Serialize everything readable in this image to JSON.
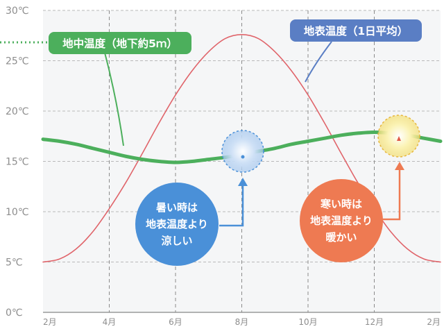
{
  "chart_data": {
    "type": "line",
    "ylim": [
      0,
      30
    ],
    "y_ticks": [
      "0℃",
      "5℃",
      "10℃",
      "15℃",
      "20℃",
      "25℃",
      "30℃"
    ],
    "x_ticks": [
      {
        "label": "2月",
        "month": 2
      },
      {
        "label": "4月",
        "month": 4
      },
      {
        "label": "6月",
        "month": 6
      },
      {
        "label": "8月",
        "month": 8
      },
      {
        "label": "10月",
        "month": 10
      },
      {
        "label": "12月",
        "month": 12
      },
      {
        "label": "2月",
        "month": 14
      }
    ],
    "xlim": [
      2,
      14
    ],
    "grid": true,
    "series": [
      {
        "name": "地表温度（1日平均）",
        "color": "#e0646a",
        "x": [
          2,
          2.5,
          3,
          3.5,
          4,
          4.5,
          5,
          5.5,
          6,
          6.5,
          7,
          7.5,
          8,
          8.5,
          9,
          9.5,
          10,
          10.5,
          11,
          11.5,
          12,
          12.5,
          13,
          13.5,
          14
        ],
        "y": [
          5.0,
          5.3,
          6.3,
          8.0,
          10.3,
          12.9,
          15.8,
          18.8,
          21.6,
          24.0,
          25.9,
          27.2,
          27.6,
          27.2,
          25.9,
          24.0,
          21.6,
          18.8,
          15.8,
          12.9,
          10.3,
          8.0,
          6.3,
          5.3,
          5.0
        ]
      },
      {
        "name": "地中温度（地下約5ｍ）",
        "color": "#4caf5c",
        "x": [
          2,
          2.5,
          3,
          3.5,
          4,
          4.5,
          5,
          5.5,
          6,
          6.5,
          7,
          7.5,
          8,
          8.5,
          9,
          9.5,
          10,
          10.5,
          11,
          11.5,
          12,
          12.5,
          13,
          13.5,
          14
        ],
        "y": [
          17.2,
          17.0,
          16.7,
          16.3,
          15.9,
          15.5,
          15.2,
          15.0,
          14.9,
          15.0,
          15.2,
          15.4,
          15.7,
          16.0,
          16.3,
          16.7,
          17.0,
          17.3,
          17.6,
          17.8,
          17.9,
          17.8,
          17.6,
          17.3,
          17.0
        ]
      }
    ],
    "annotations": {
      "summer": {
        "lines": [
          "暑い時は",
          "地表温度より",
          "涼しい"
        ],
        "color": "#4a90d8"
      },
      "winter": {
        "lines": [
          "寒い時は",
          "地表温度より",
          "暖かい"
        ],
        "color": "#ee7a52"
      }
    }
  }
}
